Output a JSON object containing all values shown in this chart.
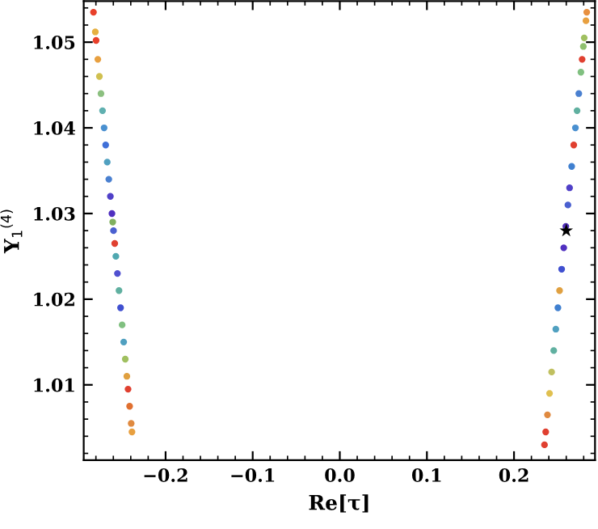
{
  "chart_data": {
    "type": "scatter",
    "xlabel": "Re[τ]",
    "ylabel": "Y$_{1}$$^{(4)}$",
    "xlim": [
      -0.294,
      0.293
    ],
    "ylim": [
      1.0012,
      1.0548
    ],
    "xticks": [
      {
        "value": -0.2,
        "label": "−0.2"
      },
      {
        "value": -0.1,
        "label": "−0.1"
      },
      {
        "value": 0.0,
        "label": "0.0"
      },
      {
        "value": 0.1,
        "label": "0.1"
      },
      {
        "value": 0.2,
        "label": "0.2"
      }
    ],
    "yticks": [
      1.01,
      1.02,
      1.03,
      1.04,
      1.05
    ],
    "series": [
      {
        "marker": "circle",
        "x": [
          -0.2828,
          -0.2807,
          -0.2798,
          -0.2778,
          -0.276,
          -0.2742,
          -0.2724,
          -0.2706,
          -0.2688,
          -0.267,
          -0.2652,
          -0.2634,
          -0.2616,
          -0.2607,
          -0.2598,
          -0.2584,
          -0.2571,
          -0.2553,
          -0.2535,
          -0.2517,
          -0.2499,
          -0.2481,
          -0.2463,
          -0.2445,
          -0.2431,
          -0.2413,
          -0.2395,
          -0.2386,
          0.235,
          0.2364,
          0.2384,
          0.2408,
          0.2432,
          0.2456,
          0.248,
          0.2504,
          0.2523,
          0.2547,
          0.2571,
          0.2595,
          0.2619,
          0.2638,
          0.2662,
          0.2686,
          0.2705,
          0.2724,
          0.2744,
          0.2768,
          0.2782,
          0.2796,
          0.2806,
          0.2826,
          0.2835
        ],
        "values": [
          1.0535,
          1.0512,
          1.0502,
          1.048,
          1.046,
          1.044,
          1.042,
          1.04,
          1.038,
          1.036,
          1.034,
          1.032,
          1.03,
          1.029,
          1.028,
          1.0265,
          1.025,
          1.023,
          1.021,
          1.019,
          1.017,
          1.015,
          1.013,
          1.011,
          1.0095,
          1.0075,
          1.0055,
          1.0045,
          1.003,
          1.0045,
          1.0065,
          1.009,
          1.0115,
          1.014,
          1.0165,
          1.019,
          1.021,
          1.0235,
          1.026,
          1.0285,
          1.031,
          1.033,
          1.0355,
          1.038,
          1.04,
          1.042,
          1.044,
          1.0465,
          1.048,
          1.0495,
          1.0505,
          1.0525,
          1.0535
        ],
        "colors": [
          "#e8402a",
          "#e6b040",
          "#e8402a",
          "#e8a040",
          "#d0c050",
          "#8cc080",
          "#60b0b0",
          "#4a90d0",
          "#4070d8",
          "#50a0c0",
          "#4a80d0",
          "#5040c8",
          "#5030c0",
          "#80b060",
          "#4a60d0",
          "#e04030",
          "#50a8b0",
          "#5050d0",
          "#60b0a0",
          "#4050d0",
          "#80c080",
          "#50a0c0",
          "#a0c060",
          "#e0a040",
          "#e04030",
          "#e07030",
          "#e08a40",
          "#e8a040",
          "#e04030",
          "#e04030",
          "#e08a40",
          "#e0c050",
          "#c0c060",
          "#60b0a0",
          "#50a0c0",
          "#4080d0",
          "#e0a040",
          "#4050d0",
          "#5030c0",
          "#5030b8",
          "#4a60d0",
          "#5040c8",
          "#4080d0",
          "#e04030",
          "#4a90d0",
          "#60b0a0",
          "#4a80d0",
          "#80c080",
          "#e04030",
          "#90c070",
          "#a0c060",
          "#e8a040",
          "#e89040"
        ]
      },
      {
        "marker": "star",
        "color": "#000000",
        "x": [
          0.26
        ],
        "values": [
          1.028
        ]
      }
    ]
  }
}
